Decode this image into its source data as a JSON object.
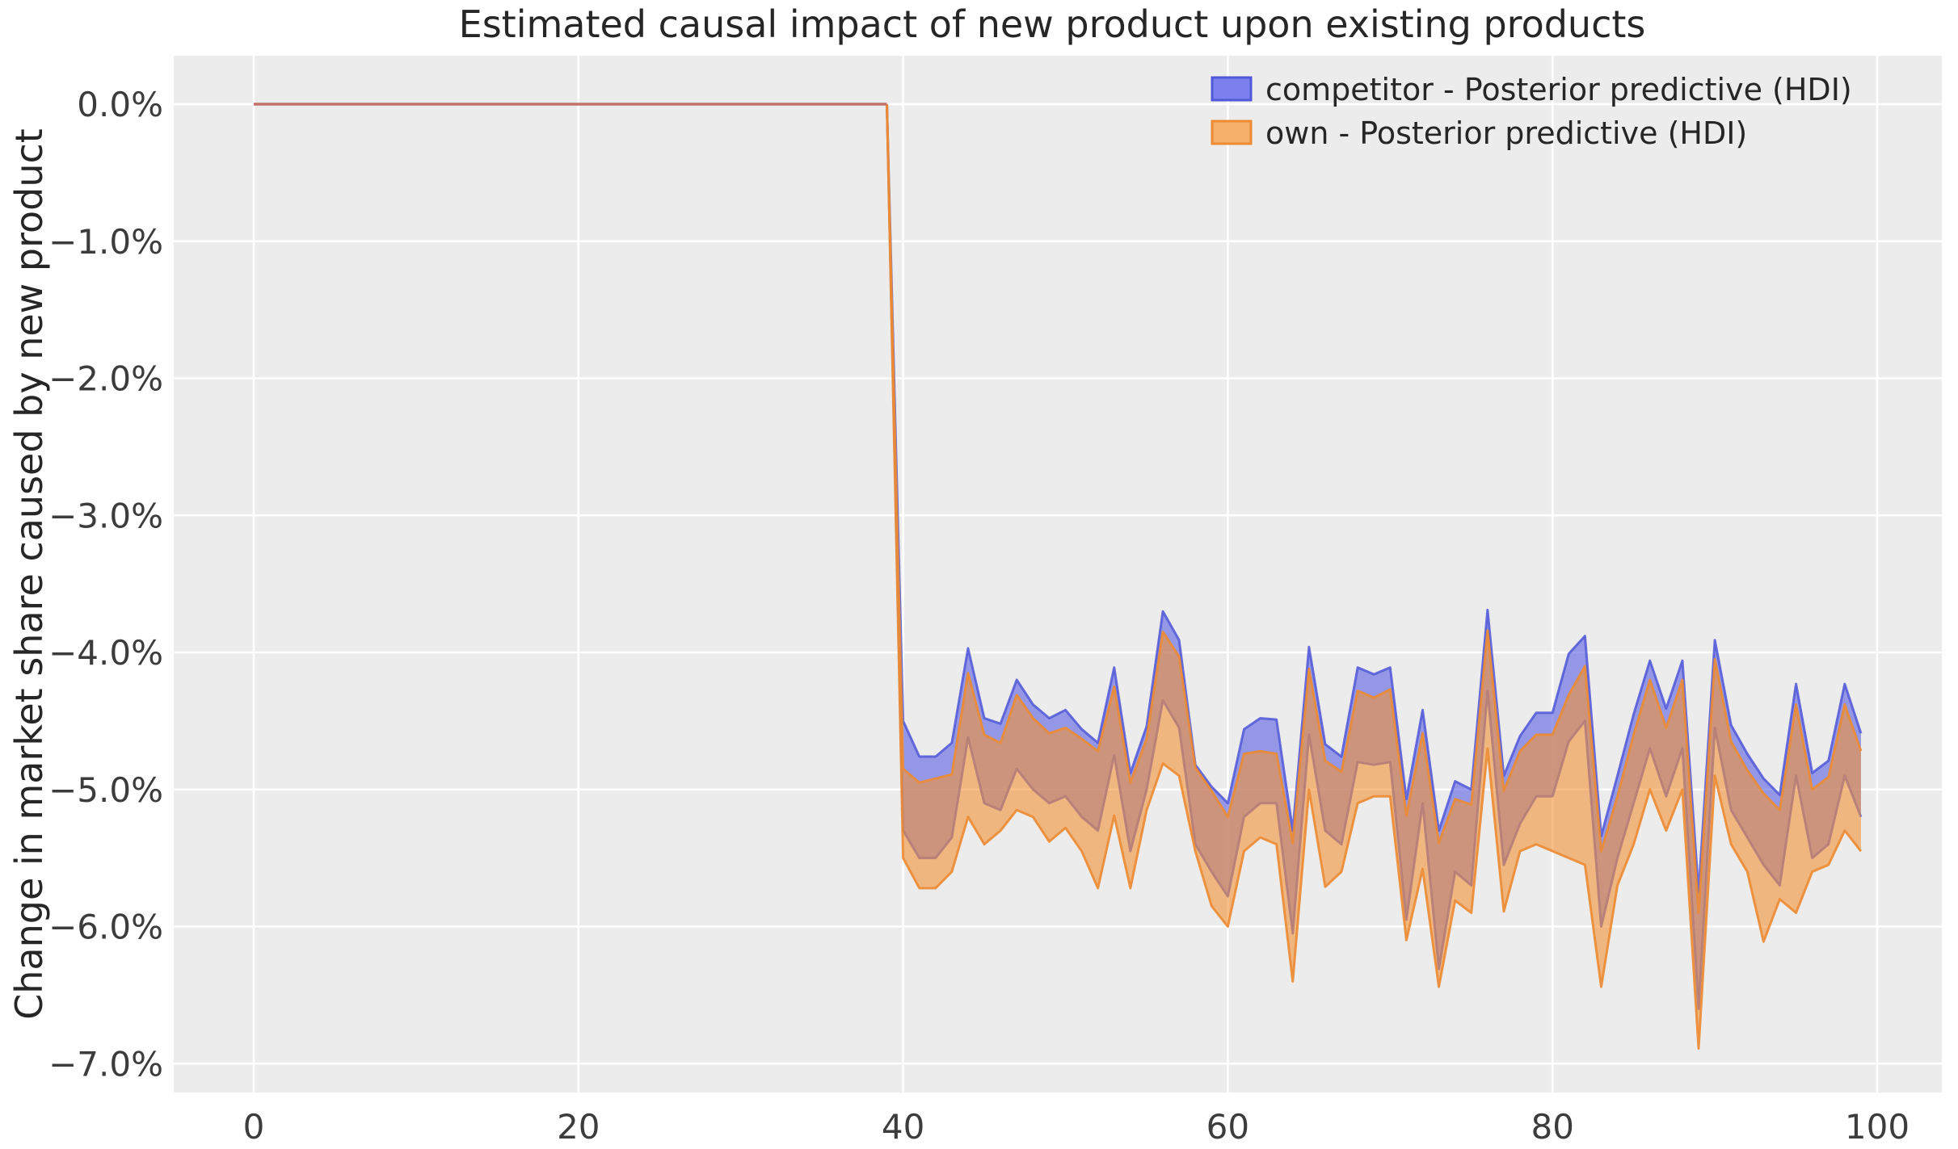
{
  "chart_data": {
    "type": "area",
    "title": "Estimated causal impact of new product upon existing products",
    "ylabel": "Change in market share caused by new product",
    "xlabel": "",
    "grid": true,
    "background_color": "#ececec",
    "gridline_color": "#ffffff",
    "xlim": [
      -4.9,
      104.0
    ],
    "ylim_percent": [
      0.35,
      -7.21
    ],
    "x_ticks": [
      0,
      20,
      40,
      60,
      80,
      100
    ],
    "y_ticks": [
      {
        "value": 0,
        "label": "0.0%"
      },
      {
        "value": -1,
        "label": "−1.0%"
      },
      {
        "value": -2,
        "label": "−2.0%"
      },
      {
        "value": -3,
        "label": "−3.0%"
      },
      {
        "value": -4,
        "label": "−4.0%"
      },
      {
        "value": -5,
        "label": "−5.0%"
      },
      {
        "value": -6,
        "label": "−6.0%"
      },
      {
        "value": -7,
        "label": "−7.0%"
      }
    ],
    "pre_period": {
      "x_start": 0,
      "x_end": 39,
      "value_percent": 0,
      "line_color": "#c4736a"
    },
    "post_x_start": 40,
    "legend_position": "upper right",
    "series": [
      {
        "name": "competitor - Posterior predictive (HDI)",
        "fill_color": "rgb(92,98,224)",
        "fill_opacity": 0.62,
        "edge_color": "rgb(80,87,216)",
        "edge_opacity": 0.85,
        "upper_percent": [
          -4.5,
          -4.76,
          -4.76,
          -4.66,
          -3.97,
          -4.48,
          -4.52,
          -4.2,
          -4.38,
          -4.48,
          -4.42,
          -4.56,
          -4.66,
          -4.11,
          -4.88,
          -4.54,
          -3.7,
          -3.91,
          -4.82,
          -4.98,
          -5.1,
          -4.56,
          -4.48,
          -4.49,
          -5.3,
          -3.96,
          -4.67,
          -4.76,
          -4.11,
          -4.16,
          -4.11,
          -5.07,
          -4.42,
          -5.3,
          -4.94,
          -5.0,
          -3.69,
          -4.9,
          -4.61,
          -4.44,
          -4.44,
          -4.01,
          -3.88,
          -5.34,
          -4.9,
          -4.45,
          -4.06,
          -4.41,
          -4.06,
          -5.75,
          -3.91,
          -4.53,
          -4.74,
          -4.92,
          -5.04,
          -4.23,
          -4.88,
          -4.79,
          -4.23,
          -4.59
        ],
        "lower_percent": [
          -5.3,
          -5.5,
          -5.5,
          -5.35,
          -4.62,
          -5.1,
          -5.15,
          -4.85,
          -5.0,
          -5.1,
          -5.05,
          -5.2,
          -5.3,
          -4.75,
          -5.45,
          -5.0,
          -4.35,
          -4.55,
          -5.4,
          -5.6,
          -5.78,
          -5.2,
          -5.1,
          -5.1,
          -6.05,
          -4.6,
          -5.3,
          -5.4,
          -4.8,
          -4.82,
          -4.8,
          -5.95,
          -5.1,
          -6.31,
          -5.6,
          -5.7,
          -4.28,
          -5.55,
          -5.25,
          -5.05,
          -5.05,
          -4.65,
          -4.5,
          -6.0,
          -5.5,
          -5.1,
          -4.7,
          -5.05,
          -4.7,
          -6.6,
          -4.55,
          -5.15,
          -5.35,
          -5.55,
          -5.7,
          -4.9,
          -5.5,
          -5.4,
          -4.9,
          -5.2
        ]
      },
      {
        "name": "own - Posterior predictive (HDI)",
        "fill_color": "rgb(243,146,55)",
        "fill_opacity": 0.6,
        "edge_color": "rgb(236,139,51)",
        "edge_opacity": 0.9,
        "upper_percent": [
          -4.85,
          -4.95,
          -4.92,
          -4.89,
          -4.15,
          -4.6,
          -4.66,
          -4.31,
          -4.48,
          -4.59,
          -4.55,
          -4.63,
          -4.72,
          -4.25,
          -4.95,
          -4.63,
          -3.85,
          -4.03,
          -4.84,
          -5.01,
          -5.2,
          -4.74,
          -4.72,
          -4.74,
          -5.39,
          -4.12,
          -4.79,
          -4.87,
          -4.28,
          -4.33,
          -4.27,
          -5.19,
          -4.59,
          -5.39,
          -5.07,
          -5.11,
          -3.84,
          -5.01,
          -4.72,
          -4.6,
          -4.6,
          -4.31,
          -4.1,
          -5.45,
          -5.05,
          -4.6,
          -4.2,
          -4.55,
          -4.2,
          -5.9,
          -4.05,
          -4.65,
          -4.86,
          -5.03,
          -5.15,
          -4.38,
          -5.0,
          -4.91,
          -4.38,
          -4.72
        ],
        "lower_percent": [
          -5.5,
          -5.72,
          -5.72,
          -5.6,
          -5.2,
          -5.4,
          -5.3,
          -5.15,
          -5.2,
          -5.38,
          -5.28,
          -5.45,
          -5.72,
          -5.19,
          -5.72,
          -5.15,
          -4.81,
          -4.9,
          -5.45,
          -5.85,
          -6.0,
          -5.45,
          -5.35,
          -5.4,
          -6.4,
          -5.0,
          -5.71,
          -5.6,
          -5.1,
          -5.05,
          -5.05,
          -6.1,
          -5.58,
          -6.44,
          -5.81,
          -5.9,
          -4.7,
          -5.89,
          -5.45,
          -5.4,
          -5.45,
          -5.5,
          -5.55,
          -6.44,
          -5.7,
          -5.4,
          -5.0,
          -5.3,
          -5.0,
          -6.89,
          -4.9,
          -5.4,
          -5.6,
          -6.11,
          -5.8,
          -5.9,
          -5.6,
          -5.55,
          -5.3,
          -5.45
        ]
      }
    ]
  }
}
